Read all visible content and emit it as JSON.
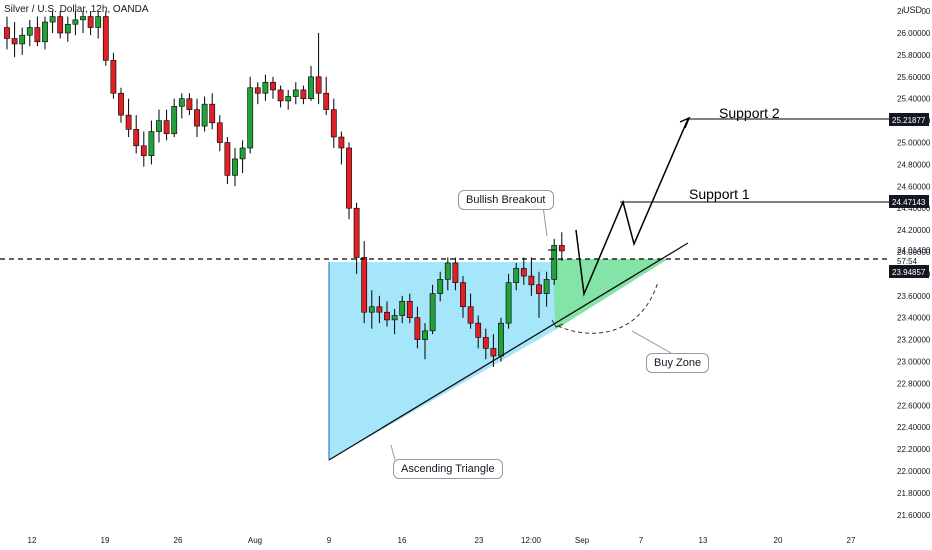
{
  "header": {
    "title": "Silver / U.S. Dollar, 12h, OANDA",
    "currency": "USD"
  },
  "chart_data": {
    "type": "candlestick",
    "ylim": [
      21.5,
      26.2
    ],
    "y_ticks": [
      "26.20000",
      "26.00000",
      "25.80000",
      "25.60000",
      "25.40000",
      "25.20000",
      "25.00000",
      "24.80000",
      "24.60000",
      "24.40000",
      "24.20000",
      "24.00000",
      "23.80000",
      "23.60000",
      "23.40000",
      "23.20000",
      "23.00000",
      "22.80000",
      "22.60000",
      "22.40000",
      "22.20000",
      "22.00000",
      "21.80000",
      "21.60000"
    ],
    "x_ticks": [
      "12",
      "19",
      "26",
      "Aug",
      "9",
      "16",
      "23",
      "12:00",
      "Sep",
      "7",
      "13",
      "20",
      "27"
    ],
    "price_labels": {
      "support2": "25.21877",
      "support1": "24.47143",
      "current": "24.01400",
      "countdown": "57:54",
      "breakout_level": "23.94857"
    },
    "annotations": {
      "breakout": "Bullish Breakout",
      "support1": "Support 1",
      "support2": "Support 2",
      "buy_zone": "Buy Zone",
      "triangle": "Ascending Triangle"
    },
    "series": [
      {
        "x": "Jul 11 00:00",
        "o": 26.05,
        "h": 26.15,
        "l": 25.85,
        "c": 25.95
      },
      {
        "x": "Jul 11 12:00",
        "o": 25.95,
        "h": 26.1,
        "l": 25.78,
        "c": 25.9
      },
      {
        "x": "Jul 12 00:00",
        "o": 25.9,
        "h": 26.05,
        "l": 25.8,
        "c": 25.98
      },
      {
        "x": "Jul 12 12:00",
        "o": 25.98,
        "h": 26.12,
        "l": 25.88,
        "c": 26.05
      },
      {
        "x": "Jul 13 00:00",
        "o": 26.05,
        "h": 26.15,
        "l": 25.88,
        "c": 25.92
      },
      {
        "x": "Jul 13 12:00",
        "o": 25.92,
        "h": 26.15,
        "l": 25.85,
        "c": 26.1
      },
      {
        "x": "Jul 14 00:00",
        "o": 26.1,
        "h": 26.2,
        "l": 26.0,
        "c": 26.15
      },
      {
        "x": "Jul 14 12:00",
        "o": 26.15,
        "h": 26.2,
        "l": 25.95,
        "c": 26.0
      },
      {
        "x": "Jul 15 00:00",
        "o": 26.0,
        "h": 26.15,
        "l": 25.92,
        "c": 26.08
      },
      {
        "x": "Jul 15 12:00",
        "o": 26.08,
        "h": 26.2,
        "l": 25.98,
        "c": 26.12
      },
      {
        "x": "Jul 16 00:00",
        "o": 26.12,
        "h": 26.2,
        "l": 26.0,
        "c": 26.15
      },
      {
        "x": "Jul 16 12:00",
        "o": 26.15,
        "h": 26.2,
        "l": 25.98,
        "c": 26.05
      },
      {
        "x": "Jul 19 00:00",
        "o": 26.05,
        "h": 26.2,
        "l": 25.95,
        "c": 26.15
      },
      {
        "x": "Jul 19 12:00",
        "o": 26.15,
        "h": 26.2,
        "l": 25.7,
        "c": 25.75
      },
      {
        "x": "Jul 20 00:00",
        "o": 25.75,
        "h": 25.82,
        "l": 25.4,
        "c": 25.45
      },
      {
        "x": "Jul 20 12:00",
        "o": 25.45,
        "h": 25.5,
        "l": 25.18,
        "c": 25.25
      },
      {
        "x": "Jul 21 00:00",
        "o": 25.25,
        "h": 25.4,
        "l": 25.05,
        "c": 25.12
      },
      {
        "x": "Jul 21 12:00",
        "o": 25.12,
        "h": 25.25,
        "l": 24.9,
        "c": 24.97
      },
      {
        "x": "Jul 22 00:00",
        "o": 24.97,
        "h": 25.1,
        "l": 24.78,
        "c": 24.88
      },
      {
        "x": "Jul 22 12:00",
        "o": 24.88,
        "h": 25.2,
        "l": 24.8,
        "c": 25.1
      },
      {
        "x": "Jul 23 00:00",
        "o": 25.1,
        "h": 25.3,
        "l": 25.0,
        "c": 25.2
      },
      {
        "x": "Jul 23 12:00",
        "o": 25.2,
        "h": 25.3,
        "l": 25.02,
        "c": 25.08
      },
      {
        "x": "Jul 26 00:00",
        "o": 25.08,
        "h": 25.4,
        "l": 25.05,
        "c": 25.33
      },
      {
        "x": "Jul 26 12:00",
        "o": 25.33,
        "h": 25.45,
        "l": 25.22,
        "c": 25.4
      },
      {
        "x": "Jul 27 00:00",
        "o": 25.4,
        "h": 25.45,
        "l": 25.25,
        "c": 25.3
      },
      {
        "x": "Jul 27 12:00",
        "o": 25.3,
        "h": 25.4,
        "l": 25.05,
        "c": 25.15
      },
      {
        "x": "Jul 28 00:00",
        "o": 25.15,
        "h": 25.42,
        "l": 25.1,
        "c": 25.35
      },
      {
        "x": "Jul 28 12:00",
        "o": 25.35,
        "h": 25.45,
        "l": 25.12,
        "c": 25.18
      },
      {
        "x": "Jul 29 00:00",
        "o": 25.18,
        "h": 25.25,
        "l": 24.92,
        "c": 25.0
      },
      {
        "x": "Jul 29 12:00",
        "o": 25.0,
        "h": 25.05,
        "l": 24.62,
        "c": 24.7
      },
      {
        "x": "Jul 30 00:00",
        "o": 24.7,
        "h": 24.95,
        "l": 24.6,
        "c": 24.85
      },
      {
        "x": "Jul 30 12:00",
        "o": 24.85,
        "h": 25.02,
        "l": 24.72,
        "c": 24.95
      },
      {
        "x": "Aug 2 00:00",
        "o": 24.95,
        "h": 25.6,
        "l": 24.9,
        "c": 25.5
      },
      {
        "x": "Aug 2 12:00",
        "o": 25.5,
        "h": 25.55,
        "l": 25.35,
        "c": 25.45
      },
      {
        "x": "Aug 3 00:00",
        "o": 25.45,
        "h": 25.62,
        "l": 25.38,
        "c": 25.55
      },
      {
        "x": "Aug 3 12:00",
        "o": 25.55,
        "h": 25.6,
        "l": 25.4,
        "c": 25.48
      },
      {
        "x": "Aug 4 00:00",
        "o": 25.48,
        "h": 25.52,
        "l": 25.32,
        "c": 25.38
      },
      {
        "x": "Aug 4 12:00",
        "o": 25.38,
        "h": 25.48,
        "l": 25.3,
        "c": 25.42
      },
      {
        "x": "Aug 5 00:00",
        "o": 25.42,
        "h": 25.55,
        "l": 25.35,
        "c": 25.48
      },
      {
        "x": "Aug 5 12:00",
        "o": 25.48,
        "h": 25.52,
        "l": 25.35,
        "c": 25.4
      },
      {
        "x": "Aug 6 00:00",
        "o": 25.4,
        "h": 25.7,
        "l": 25.38,
        "c": 25.6
      },
      {
        "x": "Aug 6 12:00",
        "o": 25.6,
        "h": 26.0,
        "l": 25.35,
        "c": 25.45
      },
      {
        "x": "Aug 9 00:00",
        "o": 25.45,
        "h": 25.6,
        "l": 25.25,
        "c": 25.3
      },
      {
        "x": "Aug 9 12:00",
        "o": 25.3,
        "h": 25.4,
        "l": 24.95,
        "c": 25.05
      },
      {
        "x": "Aug 10 00:00",
        "o": 25.05,
        "h": 25.1,
        "l": 24.8,
        "c": 24.95
      },
      {
        "x": "Aug 10 12:00",
        "o": 24.95,
        "h": 25.0,
        "l": 24.3,
        "c": 24.4
      },
      {
        "x": "Aug 11 00:00",
        "o": 24.4,
        "h": 24.45,
        "l": 23.8,
        "c": 23.95
      },
      {
        "x": "Aug 11 12:00",
        "o": 23.95,
        "h": 24.1,
        "l": 23.35,
        "c": 23.45
      },
      {
        "x": "Aug 12 00:00",
        "o": 23.45,
        "h": 23.65,
        "l": 23.3,
        "c": 23.5
      },
      {
        "x": "Aug 12 12:00",
        "o": 23.5,
        "h": 23.6,
        "l": 23.35,
        "c": 23.45
      },
      {
        "x": "Aug 13 00:00",
        "o": 23.45,
        "h": 23.55,
        "l": 23.32,
        "c": 23.38
      },
      {
        "x": "Aug 13 12:00",
        "o": 23.38,
        "h": 23.48,
        "l": 23.25,
        "c": 23.42
      },
      {
        "x": "Aug 16 00:00",
        "o": 23.42,
        "h": 23.6,
        "l": 23.35,
        "c": 23.55
      },
      {
        "x": "Aug 16 12:00",
        "o": 23.55,
        "h": 23.62,
        "l": 23.35,
        "c": 23.4
      },
      {
        "x": "Aug 17 00:00",
        "o": 23.4,
        "h": 23.5,
        "l": 23.12,
        "c": 23.2
      },
      {
        "x": "Aug 17 12:00",
        "o": 23.2,
        "h": 23.35,
        "l": 23.02,
        "c": 23.28
      },
      {
        "x": "Aug 18 00:00",
        "o": 23.28,
        "h": 23.7,
        "l": 23.25,
        "c": 23.62
      },
      {
        "x": "Aug 18 12:00",
        "o": 23.62,
        "h": 23.82,
        "l": 23.55,
        "c": 23.75
      },
      {
        "x": "Aug 19 00:00",
        "o": 23.75,
        "h": 23.95,
        "l": 23.65,
        "c": 23.9
      },
      {
        "x": "Aug 19 12:00",
        "o": 23.9,
        "h": 23.95,
        "l": 23.65,
        "c": 23.72
      },
      {
        "x": "Aug 20 00:00",
        "o": 23.72,
        "h": 23.78,
        "l": 23.4,
        "c": 23.5
      },
      {
        "x": "Aug 20 12:00",
        "o": 23.5,
        "h": 23.62,
        "l": 23.3,
        "c": 23.35
      },
      {
        "x": "Aug 23 00:00",
        "o": 23.35,
        "h": 23.42,
        "l": 23.12,
        "c": 23.22
      },
      {
        "x": "Aug 23 12:00",
        "o": 23.22,
        "h": 23.3,
        "l": 23.02,
        "c": 23.12
      },
      {
        "x": "Aug 24 00:00",
        "o": 23.12,
        "h": 23.25,
        "l": 22.95,
        "c": 23.05
      },
      {
        "x": "Aug 24 12:00",
        "o": 23.05,
        "h": 23.4,
        "l": 23.0,
        "c": 23.35
      },
      {
        "x": "Aug 25 00:00",
        "o": 23.35,
        "h": 23.8,
        "l": 23.3,
        "c": 23.72
      },
      {
        "x": "Aug 25 12:00",
        "o": 23.72,
        "h": 23.9,
        "l": 23.65,
        "c": 23.85
      },
      {
        "x": "Aug 26 00:00",
        "o": 23.85,
        "h": 23.95,
        "l": 23.7,
        "c": 23.78
      },
      {
        "x": "Aug 26 12:00",
        "o": 23.78,
        "h": 23.95,
        "l": 23.6,
        "c": 23.7
      },
      {
        "x": "Aug 27 00:00",
        "o": 23.7,
        "h": 23.82,
        "l": 23.4,
        "c": 23.62
      },
      {
        "x": "Aug 27 12:00",
        "o": 23.62,
        "h": 23.82,
        "l": 23.5,
        "c": 23.75
      },
      {
        "x": "Aug 30 00:00",
        "o": 23.75,
        "h": 24.12,
        "l": 23.7,
        "c": 24.06
      },
      {
        "x": "Aug 30 12:00",
        "o": 24.06,
        "h": 24.18,
        "l": 23.92,
        "c": 24.01
      }
    ]
  }
}
